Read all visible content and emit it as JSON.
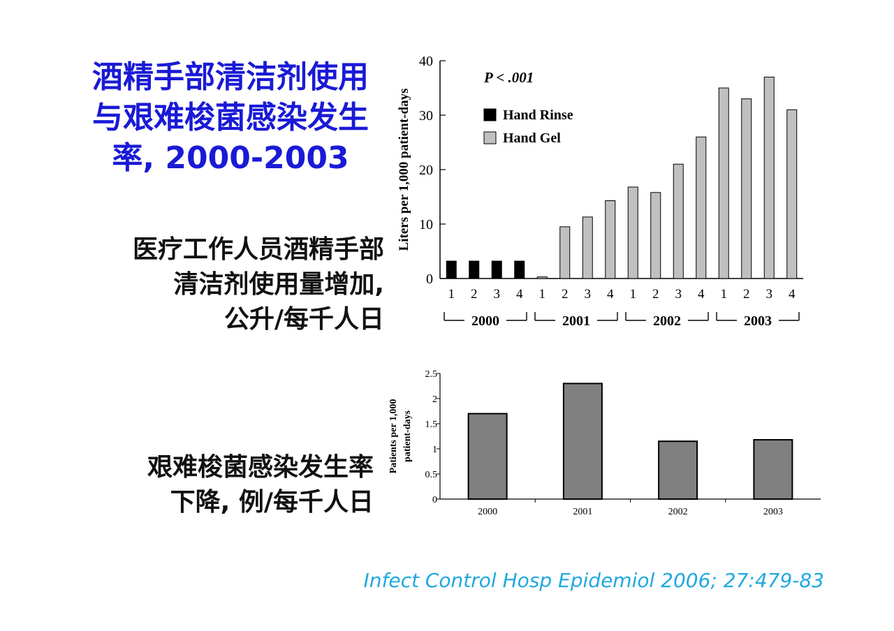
{
  "title_lines": [
    "酒精手部清洁剂使用",
    "与艰难梭菌感染发生",
    "率, 2000-2003"
  ],
  "label_usage_lines": [
    "医疗工作人员酒精手部",
    "清洁剂使用量增加,",
    "公升/每千人日"
  ],
  "label_infection_lines": [
    "艰难梭菌感染发生率",
    "下降, 例/每千人日"
  ],
  "citation": "Infect Control Hosp Epidemiol 2006; 27:479-83",
  "colors": {
    "title": "#1a1ad6",
    "citation": "#20a8e0",
    "hand_rinse": "#000000",
    "hand_gel": "#c0c0c0",
    "infection_bar": "#808080"
  },
  "chart_data": [
    {
      "type": "bar",
      "annotation": "P < .001",
      "ylabel": "Liters per 1,000 patient-days",
      "ylim": [
        0,
        40
      ],
      "yticks": [
        "0",
        "10",
        "20",
        "30",
        "40"
      ],
      "quarter_labels": [
        "1",
        "2",
        "3",
        "4",
        "1",
        "2",
        "3",
        "4",
        "1",
        "2",
        "3",
        "4",
        "1",
        "2",
        "3",
        "4"
      ],
      "year_groups": [
        "2000",
        "2001",
        "2002",
        "2003"
      ],
      "legend_position": "top-left",
      "series": [
        {
          "name": "Hand Rinse",
          "color": "#000000",
          "values": [
            3.2,
            3.2,
            3.2,
            3.2,
            0,
            0,
            0,
            0,
            0,
            0,
            0,
            0,
            0,
            0,
            0,
            0
          ]
        },
        {
          "name": "Hand Gel",
          "color": "#c0c0c0",
          "values": [
            0,
            0,
            0,
            0,
            0.3,
            9.5,
            11.3,
            14.3,
            16.8,
            15.8,
            21,
            26,
            35,
            33,
            37,
            31
          ]
        }
      ]
    },
    {
      "type": "bar",
      "ylabel_lines": [
        "Patients per 1,000",
        "patient-days"
      ],
      "ylim": [
        0,
        2.5
      ],
      "yticks": [
        "0",
        "0.5",
        "1",
        "1.5",
        "2",
        "2.5"
      ],
      "categories": [
        "2000",
        "2001",
        "2002",
        "2003"
      ],
      "values": [
        1.7,
        2.3,
        1.15,
        1.18
      ],
      "color": "#808080"
    }
  ]
}
